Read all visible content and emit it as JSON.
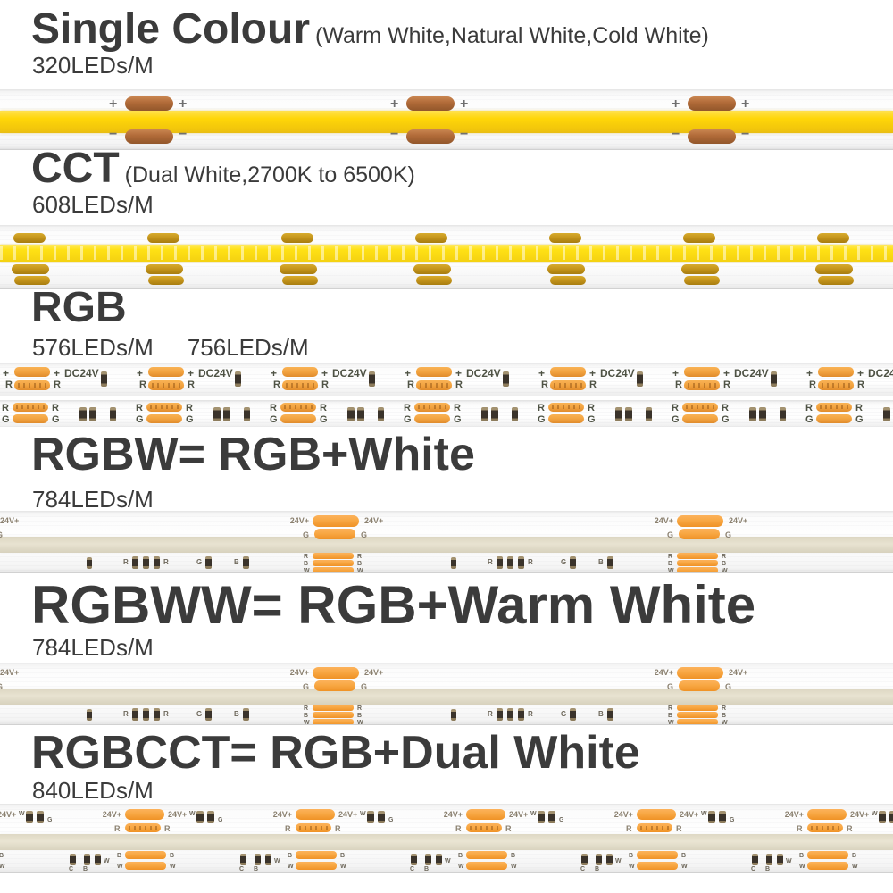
{
  "page": {
    "background": "#ffffff",
    "text_color": "#3b3b3b"
  },
  "sections": [
    {
      "id": "single-colour",
      "title": "Single Colour",
      "suffix": "(Warm White,Natural White,Cold White)",
      "densities": [
        "320LEDs/M"
      ],
      "strip": "single"
    },
    {
      "id": "cct",
      "title": "CCT",
      "suffix": "(Dual White,2700K to 6500K)",
      "densities": [
        "608LEDs/M"
      ],
      "strip": "cct"
    },
    {
      "id": "rgb",
      "title": "RGB",
      "suffix": "",
      "densities": [
        "576LEDs/M",
        "756LEDs/M"
      ],
      "strip": "rgb"
    },
    {
      "id": "rgbw",
      "title": "RGBW= RGB+White",
      "suffix": "",
      "densities": [
        "784LEDs/M"
      ],
      "strip": "rgbw"
    },
    {
      "id": "rgbww",
      "title": "RGBWW= RGB+Warm White",
      "suffix": "",
      "densities": [
        "784LEDs/M"
      ],
      "strip": "rgbw"
    },
    {
      "id": "rgbcct",
      "title": "RGBCCT= RGB+Dual White",
      "suffix": "",
      "densities": [
        "840LEDs/M"
      ],
      "strip": "rgbcct"
    }
  ],
  "strips": {
    "single": {
      "band_color": "#ffd608",
      "pad_color": "#b06a38",
      "plus_label": "+",
      "minus_label": "−"
    },
    "cct": {
      "band_color": "#ffe114",
      "pad_color": "#c3931a"
    },
    "rgb": {
      "pad_color": "#f2a340",
      "labels": {
        "plus": "+",
        "dc": "DC24V",
        "r": "R",
        "g": "G"
      }
    },
    "rgbw": {
      "pad_color": "#f8a743",
      "band_color": "#e8e3d1",
      "labels": {
        "v": "24V+",
        "r": "R",
        "g": "G",
        "b": "B",
        "w": "W"
      }
    },
    "rgbcct": {
      "pad_color": "#f8a743",
      "band_color": "#eae5d3",
      "labels": {
        "v": "24V+",
        "r": "R",
        "g": "G",
        "b": "B",
        "w": "W",
        "c": "C"
      }
    }
  }
}
